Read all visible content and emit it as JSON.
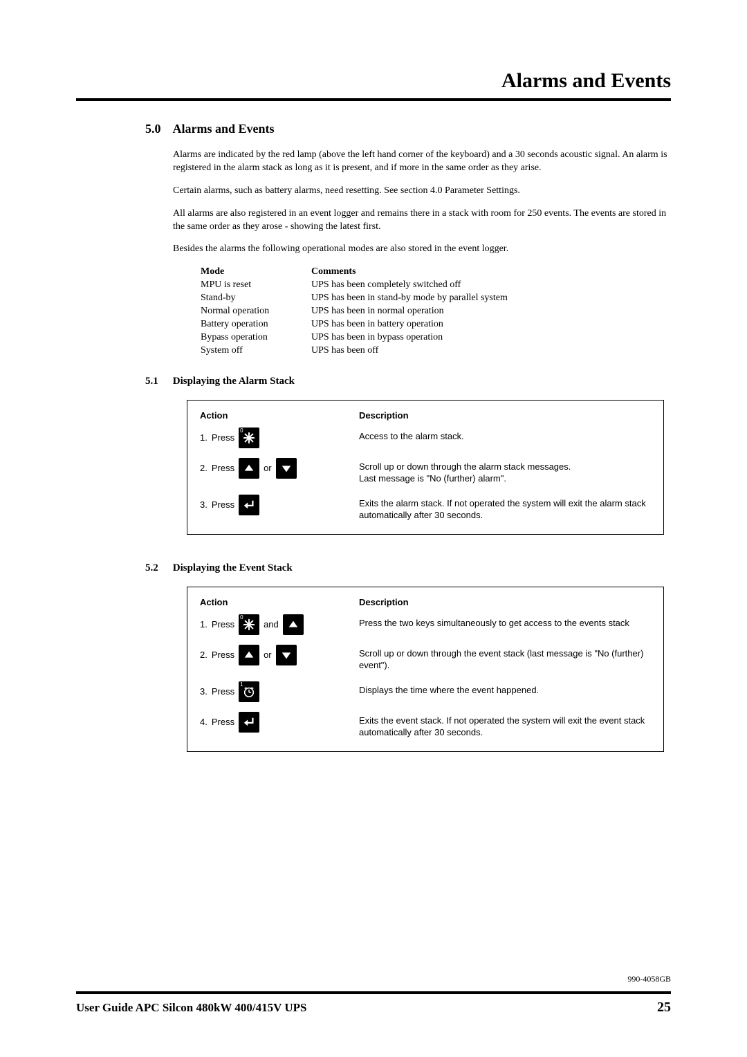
{
  "header": {
    "title": "Alarms and Events"
  },
  "section": {
    "num": "5.0",
    "title": "Alarms and Events",
    "para1": "Alarms are indicated by the red lamp (above the left hand corner of the keyboard) and a 30 seconds acoustic signal. An alarm is registered in the alarm stack as long as it is present, and if more in the same order as they arise.",
    "para2": "Certain alarms, such as battery alarms, need resetting. See section 4.0 Parameter Settings.",
    "para3": "All alarms are also registered in an event logger and remains there in a stack with room for 250 events. The events are stored in the same order as they arose - showing the latest first.",
    "para4": "Besides the alarms the following operational modes are also stored in the event logger."
  },
  "mode_table": {
    "col1_header": "Mode",
    "col2_header": "Comments",
    "rows": [
      {
        "mode": "MPU is reset",
        "comment": "UPS has been completely switched off"
      },
      {
        "mode": "Stand-by",
        "comment": "UPS has been in stand-by mode by parallel system"
      },
      {
        "mode": "Normal operation",
        "comment": "UPS has been in normal operation"
      },
      {
        "mode": "Battery operation",
        "comment": "UPS has been in battery operation"
      },
      {
        "mode": "Bypass operation",
        "comment": "UPS has been in bypass operation"
      },
      {
        "mode": "System off",
        "comment": "UPS has been off"
      }
    ]
  },
  "sub51": {
    "num": "5.1",
    "title": "Displaying the Alarm Stack",
    "action_header": "Action",
    "desc_header": "Description",
    "rows": [
      {
        "n": "1.",
        "verb": "Press",
        "keys": [
          {
            "t": "asterisk",
            "c": "0"
          }
        ],
        "desc": "Access to the alarm stack."
      },
      {
        "n": "2.",
        "verb": "Press",
        "keys": [
          {
            "t": "up"
          }
        ],
        "conj": "or",
        "keys2": [
          {
            "t": "down"
          }
        ],
        "desc": "Scroll up or down through the alarm stack messages.\nLast message is \"No (further) alarm\"."
      },
      {
        "n": "3.",
        "verb": "Press",
        "keys": [
          {
            "t": "enter"
          }
        ],
        "desc": "Exits the alarm stack. If not operated the system will exit the alarm stack automatically after 30 seconds."
      }
    ]
  },
  "sub52": {
    "num": "5.2",
    "title": "Displaying the Event Stack",
    "action_header": "Action",
    "desc_header": "Description",
    "rows": [
      {
        "n": "1.",
        "verb": "Press",
        "keys": [
          {
            "t": "asterisk",
            "c": "0"
          }
        ],
        "conj": "and",
        "keys2": [
          {
            "t": "up"
          }
        ],
        "desc": "Press the two keys simultaneously to get access to the events stack"
      },
      {
        "n": "2.",
        "verb": "Press",
        "keys": [
          {
            "t": "up"
          }
        ],
        "conj": "or",
        "keys2": [
          {
            "t": "down"
          }
        ],
        "desc": "Scroll up or down through the event stack (last message is \"No (further) event\")."
      },
      {
        "n": "3.",
        "verb": "Press",
        "keys": [
          {
            "t": "clock",
            "c": "1"
          }
        ],
        "desc": "Displays the time where the event happened."
      },
      {
        "n": "4.",
        "verb": "Press",
        "keys": [
          {
            "t": "enter"
          }
        ],
        "desc": "Exits the event stack. If not operated the system will exit the event stack automatically after 30 seconds."
      }
    ]
  },
  "footer": {
    "doc_code": "990-4058GB",
    "title": "User Guide APC Silcon 480kW 400/415V UPS",
    "page": "25"
  }
}
